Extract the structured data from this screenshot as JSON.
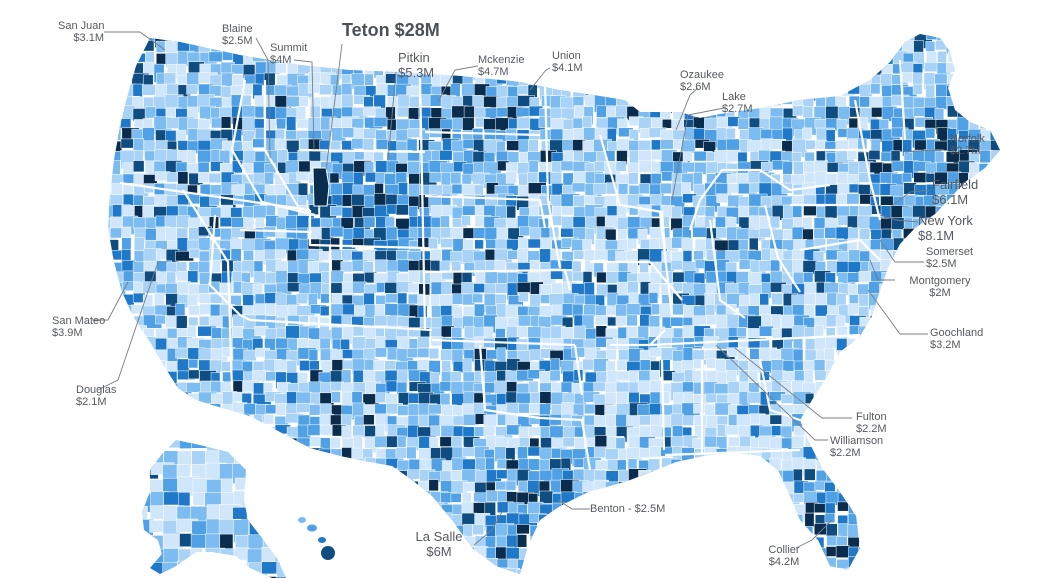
{
  "colors": {
    "background": "#ffffff",
    "state_border": "#ffffff",
    "bin_lightest": "#cfe6fb",
    "bin_light": "#a8d2f6",
    "bin_mid_light": "#7dbcf0",
    "bin_mid": "#4fa0e4",
    "bin_dark": "#1f78c8",
    "bin_darker": "#0f4c80",
    "bin_darkest": "#0a2d4e",
    "label_text": "#555a60",
    "leader_line": "#777d85"
  },
  "map": {
    "subject": "United States counties",
    "featured_label": {
      "name": "Teton",
      "value": "$28M"
    },
    "labels": [
      {
        "name": "San Juan",
        "value": "$3.1M"
      },
      {
        "name": "Blaine",
        "value": "$2.5M"
      },
      {
        "name": "Summit",
        "value": "$4M"
      },
      {
        "name": "Pitkin",
        "value": "$5.3M"
      },
      {
        "name": "Mckenzie",
        "value": "$4.7M"
      },
      {
        "name": "Union",
        "value": "$4.1M"
      },
      {
        "name": "Ozaukee",
        "value": "$2.6M"
      },
      {
        "name": "Lake",
        "value": "$2.7M"
      },
      {
        "name": "Norfolk",
        "value": "$2.7M"
      },
      {
        "name": "Fairfield",
        "value": "$6.1M"
      },
      {
        "name": "New York",
        "value": "$8.1M"
      },
      {
        "name": "Somerset",
        "value": "$2.5M"
      },
      {
        "name": "Montgomery",
        "value": "$2M"
      },
      {
        "name": "Goochland",
        "value": "$3.2M"
      },
      {
        "name": "San Mateo",
        "value": "$3.9M"
      },
      {
        "name": "Douglas",
        "value": "$2.1M"
      },
      {
        "name": "Fulton",
        "value": "$2.2M"
      },
      {
        "name": "Williamson",
        "value": "$2.2M"
      },
      {
        "name": "Benton",
        "value": "$2.5M"
      },
      {
        "name": "La Salle",
        "value": "$6M"
      },
      {
        "name": "Collier",
        "value": "$4.2M"
      }
    ]
  }
}
